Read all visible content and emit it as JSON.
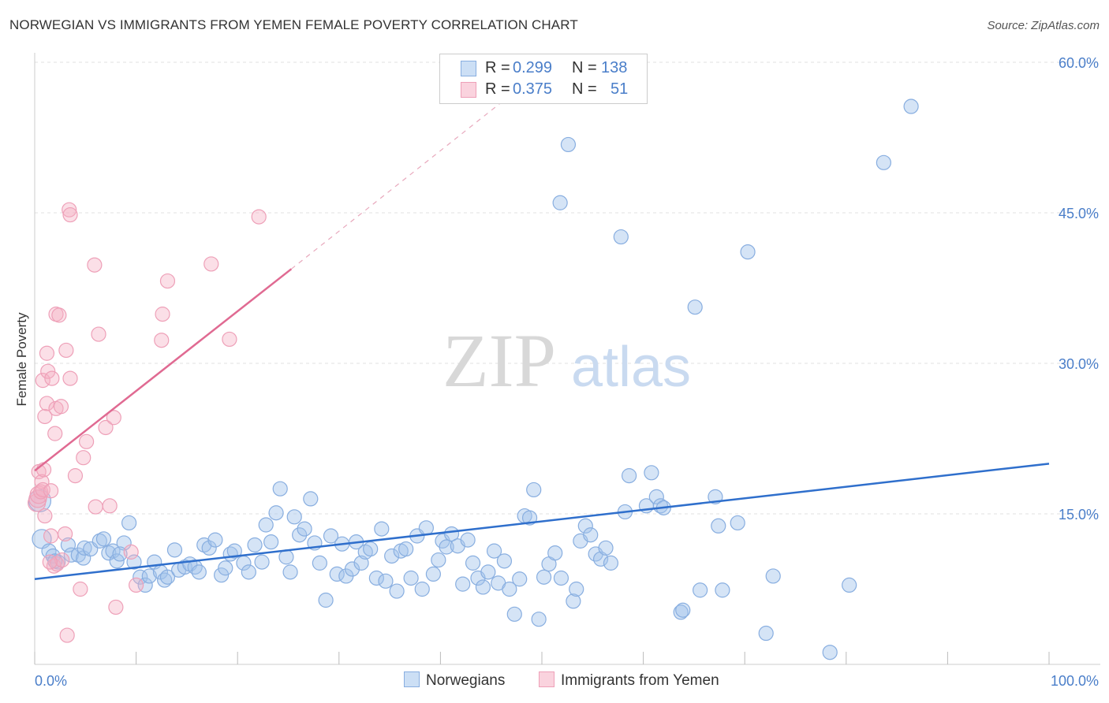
{
  "title": "NORWEGIAN VS IMMIGRANTS FROM YEMEN FEMALE POVERTY CORRELATION CHART",
  "source": "Source: ZipAtlas.com",
  "watermark": {
    "zip": "ZIP",
    "atlas": "atlas"
  },
  "legend": {
    "rows": [
      {
        "r_label": "R =",
        "r_value": "0.299",
        "n_label": "N =",
        "n_value": "138"
      },
      {
        "r_label": "R =",
        "r_value": "0.375",
        "n_label": "N =",
        "n_value": "51"
      }
    ]
  },
  "bottom_legend": {
    "series1": "Norwegians",
    "series2": "Immigrants from Yemen"
  },
  "colors": {
    "blue_fill": "rgba(162,196,236,0.45)",
    "blue_stroke": "#88aee0",
    "blue_line": "#2f6fcc",
    "pink_fill": "rgba(245,175,195,0.40)",
    "pink_stroke": "#eea0b8",
    "pink_line": "#e06a92",
    "axis_text": "#4a7ec9"
  },
  "chart_data": {
    "type": "scatter",
    "title": "NORWEGIAN VS IMMIGRANTS FROM YEMEN FEMALE POVERTY CORRELATION CHART",
    "xlabel": "",
    "ylabel": "Female Poverty",
    "xlim": [
      0,
      100
    ],
    "ylim": [
      0,
      60
    ],
    "x_tick_labels": [
      "0.0%",
      "100.0%"
    ],
    "y_ticks": [
      15,
      30,
      45,
      60
    ],
    "y_tick_labels": [
      "15.0%",
      "30.0%",
      "45.0%",
      "60.0%"
    ],
    "grid": true,
    "series": [
      {
        "name": "Norwegians",
        "r": 0.299,
        "n": 138,
        "trend": {
          "x0": 0,
          "y0": 8.5,
          "x1": 100,
          "y1": 20.0
        },
        "points": [
          [
            0.5,
            16.3
          ],
          [
            0.7,
            12.5
          ],
          [
            1.4,
            11.3
          ],
          [
            1.8,
            10.8
          ],
          [
            2.3,
            10.2
          ],
          [
            3.3,
            11.9
          ],
          [
            3.6,
            10.9
          ],
          [
            4.3,
            10.9
          ],
          [
            4.8,
            10.6
          ],
          [
            4.9,
            11.6
          ],
          [
            5.5,
            11.5
          ],
          [
            6.4,
            12.3
          ],
          [
            6.8,
            12.5
          ],
          [
            7.3,
            11.1
          ],
          [
            7.7,
            11.3
          ],
          [
            8.1,
            10.3
          ],
          [
            8.8,
            12.1
          ],
          [
            9.3,
            14.1
          ],
          [
            9.8,
            10.2
          ],
          [
            10.4,
            8.7
          ],
          [
            10.9,
            7.9
          ],
          [
            11.3,
            8.8
          ],
          [
            11.8,
            10.2
          ],
          [
            12.4,
            9.2
          ],
          [
            12.8,
            8.4
          ],
          [
            13.1,
            8.7
          ],
          [
            13.8,
            11.4
          ],
          [
            14.2,
            9.4
          ],
          [
            14.8,
            9.7
          ],
          [
            15.3,
            10.0
          ],
          [
            15.8,
            9.7
          ],
          [
            16.2,
            9.2
          ],
          [
            16.7,
            11.9
          ],
          [
            17.2,
            11.6
          ],
          [
            17.8,
            12.4
          ],
          [
            18.4,
            8.9
          ],
          [
            18.8,
            9.6
          ],
          [
            19.3,
            11.0
          ],
          [
            19.7,
            11.3
          ],
          [
            20.6,
            10.1
          ],
          [
            21.1,
            9.2
          ],
          [
            21.7,
            11.9
          ],
          [
            22.4,
            10.2
          ],
          [
            22.8,
            13.9
          ],
          [
            23.3,
            12.2
          ],
          [
            23.8,
            15.1
          ],
          [
            24.2,
            17.5
          ],
          [
            24.8,
            10.7
          ],
          [
            25.2,
            9.2
          ],
          [
            25.6,
            14.7
          ],
          [
            26.1,
            12.9
          ],
          [
            26.6,
            13.5
          ],
          [
            27.2,
            16.5
          ],
          [
            27.6,
            12.1
          ],
          [
            28.1,
            10.1
          ],
          [
            28.7,
            6.4
          ],
          [
            29.2,
            12.8
          ],
          [
            29.8,
            9.0
          ],
          [
            30.3,
            12.0
          ],
          [
            30.7,
            8.8
          ],
          [
            31.3,
            9.5
          ],
          [
            31.7,
            12.2
          ],
          [
            32.2,
            10.1
          ],
          [
            32.6,
            11.2
          ],
          [
            33.1,
            11.5
          ],
          [
            33.7,
            8.6
          ],
          [
            34.2,
            13.5
          ],
          [
            34.6,
            8.3
          ],
          [
            35.2,
            10.8
          ],
          [
            35.7,
            7.3
          ],
          [
            36.1,
            11.3
          ],
          [
            36.6,
            11.5
          ],
          [
            37.1,
            8.6
          ],
          [
            37.7,
            12.8
          ],
          [
            38.2,
            7.5
          ],
          [
            38.6,
            13.6
          ],
          [
            39.3,
            9.0
          ],
          [
            39.8,
            10.4
          ],
          [
            40.2,
            12.3
          ],
          [
            40.6,
            11.7
          ],
          [
            41.1,
            13.0
          ],
          [
            41.7,
            11.8
          ],
          [
            42.2,
            8.0
          ],
          [
            42.7,
            12.4
          ],
          [
            43.2,
            10.1
          ],
          [
            43.7,
            8.6
          ],
          [
            44.2,
            7.7
          ],
          [
            44.7,
            9.2
          ],
          [
            45.3,
            11.3
          ],
          [
            45.7,
            8.1
          ],
          [
            46.3,
            10.3
          ],
          [
            46.8,
            7.5
          ],
          [
            47.3,
            5.0
          ],
          [
            47.8,
            8.5
          ],
          [
            48.3,
            14.8
          ],
          [
            48.8,
            14.6
          ],
          [
            49.2,
            17.4
          ],
          [
            49.7,
            4.5
          ],
          [
            50.2,
            8.7
          ],
          [
            50.7,
            10.0
          ],
          [
            51.3,
            11.1
          ],
          [
            51.9,
            8.6
          ],
          [
            52.6,
            51.8
          ],
          [
            53.1,
            6.3
          ],
          [
            53.4,
            7.5
          ],
          [
            53.8,
            12.3
          ],
          [
            54.3,
            13.8
          ],
          [
            54.8,
            12.9
          ],
          [
            55.3,
            11.0
          ],
          [
            55.8,
            10.5
          ],
          [
            56.3,
            11.6
          ],
          [
            56.8,
            10.1
          ],
          [
            57.8,
            42.6
          ],
          [
            58.2,
            15.2
          ],
          [
            58.6,
            18.8
          ],
          [
            60.3,
            15.8
          ],
          [
            60.8,
            19.1
          ],
          [
            61.3,
            16.7
          ],
          [
            61.7,
            15.8
          ],
          [
            62.0,
            15.6
          ],
          [
            63.7,
            5.2
          ],
          [
            63.9,
            5.4
          ],
          [
            65.1,
            35.6
          ],
          [
            65.6,
            7.4
          ],
          [
            67.1,
            16.7
          ],
          [
            67.4,
            13.8
          ],
          [
            67.8,
            7.4
          ],
          [
            69.3,
            14.1
          ],
          [
            70.3,
            41.1
          ],
          [
            72.1,
            3.1
          ],
          [
            72.8,
            8.8
          ],
          [
            78.4,
            1.2
          ],
          [
            80.3,
            7.9
          ],
          [
            83.7,
            50.0
          ],
          [
            86.4,
            55.6
          ],
          [
            51.8,
            46.0
          ],
          [
            8.4,
            11.0
          ],
          [
            2.0,
            10.3
          ]
        ]
      },
      {
        "name": "Immigrants from Yemen",
        "r": 0.375,
        "n": 51,
        "trend": {
          "x0": 0,
          "y0": 19.3,
          "x1": 25.3,
          "y1": 39.4
        },
        "trend_dashed": {
          "x0": 25.3,
          "y0": 39.4,
          "x1": 46.0,
          "y1": 56.0
        },
        "points": [
          [
            0.2,
            16.1
          ],
          [
            0.3,
            16.5
          ],
          [
            0.4,
            16.9
          ],
          [
            0.6,
            17.2
          ],
          [
            0.4,
            19.2
          ],
          [
            0.7,
            18.2
          ],
          [
            0.8,
            17.4
          ],
          [
            0.9,
            19.4
          ],
          [
            1.0,
            14.8
          ],
          [
            0.8,
            28.3
          ],
          [
            1.0,
            24.7
          ],
          [
            1.2,
            26.0
          ],
          [
            1.2,
            31.0
          ],
          [
            1.3,
            29.2
          ],
          [
            1.6,
            17.3
          ],
          [
            1.6,
            12.8
          ],
          [
            1.7,
            28.5
          ],
          [
            1.9,
            9.8
          ],
          [
            2.0,
            23.0
          ],
          [
            2.1,
            34.9
          ],
          [
            2.1,
            25.5
          ],
          [
            2.2,
            10.0
          ],
          [
            2.4,
            34.8
          ],
          [
            2.6,
            25.7
          ],
          [
            2.7,
            10.4
          ],
          [
            3.0,
            13.0
          ],
          [
            3.1,
            31.3
          ],
          [
            3.2,
            2.9
          ],
          [
            3.4,
            45.3
          ],
          [
            3.5,
            44.8
          ],
          [
            3.5,
            28.5
          ],
          [
            4.0,
            18.8
          ],
          [
            4.5,
            7.5
          ],
          [
            4.8,
            20.6
          ],
          [
            5.1,
            22.2
          ],
          [
            5.9,
            39.8
          ],
          [
            6.0,
            15.7
          ],
          [
            6.3,
            32.9
          ],
          [
            7.0,
            23.6
          ],
          [
            7.4,
            15.8
          ],
          [
            7.8,
            24.6
          ],
          [
            8.0,
            5.7
          ],
          [
            9.5,
            11.2
          ],
          [
            10.0,
            7.9
          ],
          [
            12.5,
            32.3
          ],
          [
            12.6,
            34.9
          ],
          [
            13.1,
            38.2
          ],
          [
            17.4,
            39.9
          ],
          [
            19.2,
            32.4
          ],
          [
            22.1,
            44.6
          ],
          [
            1.5,
            10.2
          ]
        ]
      }
    ]
  }
}
